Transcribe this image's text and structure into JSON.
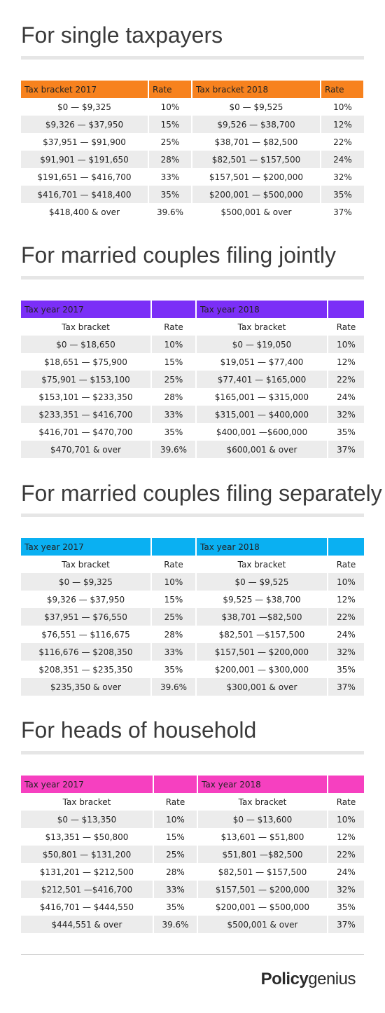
{
  "single": {
    "title": "For single taxpayers",
    "header_color": "#f7821e",
    "header": [
      "Tax bracket 2017",
      "Rate",
      "Tax bracket 2018",
      "Rate"
    ],
    "rows": [
      [
        "$0 — $9,325",
        "10%",
        "$0 — $9,525",
        "10%"
      ],
      [
        "$9,326 — $37,950",
        "15%",
        "$9,526 — $38,700",
        "12%"
      ],
      [
        "$37,951 — $91,900",
        "25%",
        "$38,701 — $82,500",
        "22%"
      ],
      [
        "$91,901 — $191,650",
        "28%",
        "$82,501 — $157,500",
        "24%"
      ],
      [
        "$191,651 — $416,700",
        "33%",
        "$157,501 — $200,000",
        "32%"
      ],
      [
        "$416,701 — $418,400",
        "35%",
        "$200,001 — $500,000",
        "35%"
      ],
      [
        "$418,400 & over",
        "39.6%",
        "$500,001 & over",
        "37%"
      ]
    ]
  },
  "joint": {
    "title": "For married couples filing jointly",
    "header_color": "#7b2ff7",
    "header": [
      "Tax year 2017",
      "Tax year 2018"
    ],
    "subheader": [
      "Tax bracket",
      "Rate",
      "Tax bracket",
      "Rate"
    ],
    "rows": [
      [
        "$0 — $18,650",
        "10%",
        "$0 — $19,050",
        "10%"
      ],
      [
        "$18,651 — $75,900",
        "15%",
        "$19,051 — $77,400",
        "12%"
      ],
      [
        "$75,901 — $153,100",
        "25%",
        "$77,401 — $165,000",
        "22%"
      ],
      [
        "$153,101 — $233,350",
        "28%",
        "$165,001 — $315,000",
        "24%"
      ],
      [
        "$233,351 — $416,700",
        "33%",
        "$315,001 — $400,000",
        "32%"
      ],
      [
        "$416,701 — $470,700",
        "35%",
        "$400,001 —$600,000",
        "35%"
      ],
      [
        "$470,701 & over",
        "39.6%",
        "$600,001 & over",
        "37%"
      ]
    ]
  },
  "separate": {
    "title": "For married couples filing separately",
    "header_color": "#0ab0f2",
    "header": [
      "Tax year 2017",
      "Tax year 2018"
    ],
    "subheader": [
      "Tax bracket",
      "Rate",
      "Tax bracket",
      "Rate"
    ],
    "rows": [
      [
        "$0 — $9,325",
        "10%",
        "$0 — $9,525",
        "10%"
      ],
      [
        "$9,326 — $37,950",
        "15%",
        "$9,525 — $38,700",
        "12%"
      ],
      [
        "$37,951 — $76,550",
        "25%",
        "$38,701 —$82,500",
        "22%"
      ],
      [
        "$76,551 — $116,675",
        "28%",
        "$82,501 —$157,500",
        "24%"
      ],
      [
        "$116,676 — $208,350",
        "33%",
        "$157,501 — $200,000",
        "32%"
      ],
      [
        "$208,351 — $235,350",
        "35%",
        "$200,001 — $300,000",
        "35%"
      ],
      [
        "$235,350 & over",
        "39.6%",
        "$300,001 & over",
        "37%"
      ]
    ]
  },
  "heads": {
    "title": "For heads of household",
    "header_color": "#f640c0",
    "header": [
      "Tax year 2017",
      "Tax year 2018"
    ],
    "subheader": [
      "Tax bracket",
      "Rate",
      "Tax bracket",
      "Rate"
    ],
    "rows": [
      [
        "$0 — $13,350",
        "10%",
        "$0 — $13,600",
        "10%"
      ],
      [
        "$13,351 — $50,800",
        "15%",
        "$13,601 — $51,800",
        "12%"
      ],
      [
        "$50,801 — $131,200",
        "25%",
        "$51,801 —$82,500",
        "22%"
      ],
      [
        "$131,201 — $212,500",
        "28%",
        "$82,501 — $157,500",
        "24%"
      ],
      [
        "$212,501 —$416,700",
        "33%",
        "$157,501 — $200,000",
        "32%"
      ],
      [
        "$416,701 — $444,550",
        "35%",
        "$200,001 — $500,000",
        "35%"
      ],
      [
        "$444,551 & over",
        "39.6%",
        "$500,001 & over",
        "37%"
      ]
    ]
  },
  "footer": {
    "brand_bold": "Policy",
    "brand_light": "genius"
  }
}
